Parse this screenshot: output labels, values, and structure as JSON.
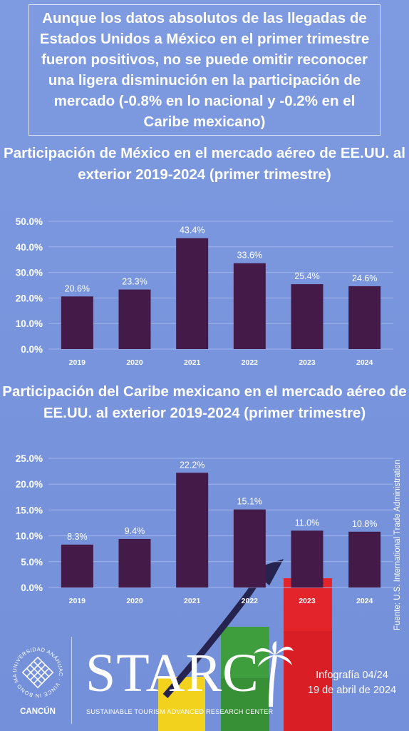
{
  "headline": "Aunque los datos absolutos de las llegadas de Estados Unidos a México en el primer trimestre fueron positivos, no se puede omitir reconocer una ligera disminución en la participación de mercado (-0.8% en lo nacional y -0.2% en el Caribe mexicano)",
  "source": "Fuente: U.S. International Trade Administration",
  "footer": {
    "university_ring_text": "UNIVERSIDAD ANÁHUAC · VINCE IN BONO MALUM",
    "university_city": "CANCÚN",
    "brand": "STARC",
    "brand_subtitle": "SUSTAINABLE TOURISM ADVANCED RESEARCH CENTER",
    "infographic": "Infografía 04/24",
    "date": "19 de abril de 2024"
  },
  "colors": {
    "background": "#7b97de",
    "bar": "#431a48",
    "text": "#ffffff",
    "gridline": "#9fb4ea"
  },
  "chart_data": [
    {
      "type": "bar",
      "title": "Participación de México en el mercado aéreo de EE.UU. al exterior 2019-2024 (primer trimestre)",
      "categories": [
        "2019",
        "2020",
        "2021",
        "2022",
        "2023",
        "2024"
      ],
      "values": [
        20.6,
        23.3,
        43.4,
        33.6,
        25.4,
        24.6
      ],
      "value_labels": [
        "20.6%",
        "23.3%",
        "43.4%",
        "33.6%",
        "25.4%",
        "24.6%"
      ],
      "ylim": [
        0,
        50
      ],
      "yticks": [
        "0.0%",
        "10.0%",
        "20.0%",
        "30.0%",
        "40.0%",
        "50.0%"
      ],
      "xlabel": "",
      "ylabel": "",
      "grid": true
    },
    {
      "type": "bar",
      "title": "Participación del Caribe mexicano en el mercado aéreo de EE.UU. al exterior 2019-2024 (primer trimestre)",
      "categories": [
        "2019",
        "2020",
        "2021",
        "2022",
        "2023",
        "2024"
      ],
      "values": [
        8.3,
        9.4,
        22.2,
        15.1,
        11.0,
        10.8
      ],
      "value_labels": [
        "8.3%",
        "9.4%",
        "22.2%",
        "15.1%",
        "11.0%",
        "10.8%"
      ],
      "ylim": [
        0,
        25
      ],
      "yticks": [
        "0.0%",
        "5.0%",
        "10.0%",
        "15.0%",
        "20.0%",
        "25.0%"
      ],
      "xlabel": "",
      "ylabel": "",
      "grid": true
    }
  ]
}
